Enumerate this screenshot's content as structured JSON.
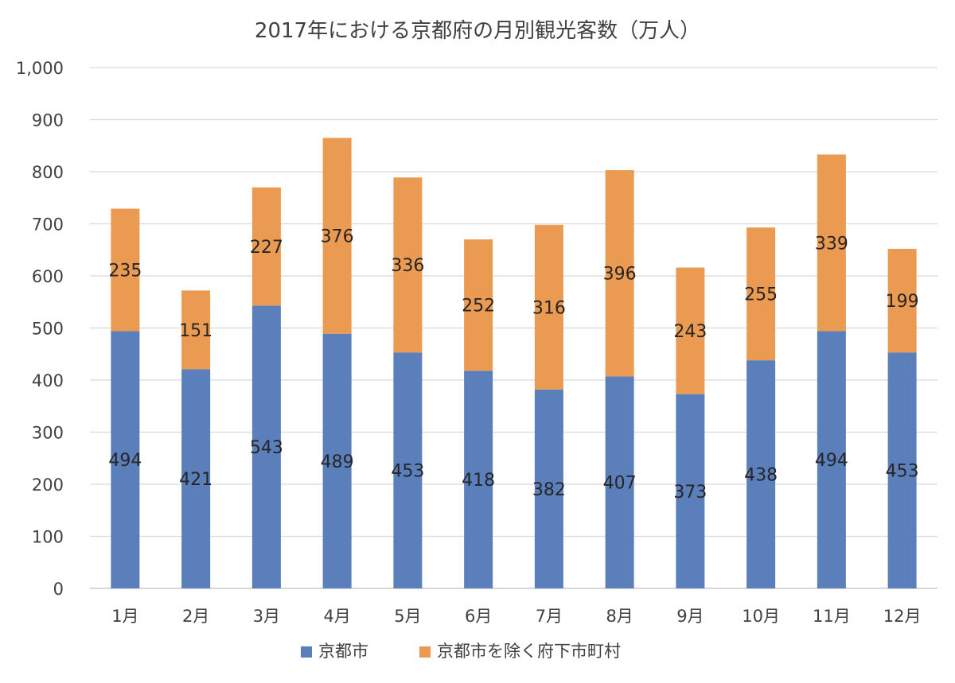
{
  "chart_data": {
    "type": "bar",
    "stacked": true,
    "title": "2017年における京都府の月別観光客数（万人）",
    "xlabel": "",
    "ylabel": "",
    "categories": [
      "1月",
      "2月",
      "3月",
      "4月",
      "5月",
      "6月",
      "7月",
      "8月",
      "9月",
      "10月",
      "11月",
      "12月"
    ],
    "ylim": [
      0,
      1000
    ],
    "yticks": [
      0,
      100,
      200,
      300,
      400,
      500,
      600,
      700,
      800,
      900,
      1000
    ],
    "ytick_labels": [
      "0",
      "100",
      "200",
      "300",
      "400",
      "500",
      "600",
      "700",
      "800",
      "900",
      "1,000"
    ],
    "grid": true,
    "legend_position": "bottom",
    "series": [
      {
        "name": "京都市",
        "color": "#5B7FBA",
        "values": [
          494,
          421,
          543,
          489,
          453,
          418,
          382,
          407,
          373,
          438,
          494,
          453
        ]
      },
      {
        "name": "京都市を除く府下市町村",
        "color": "#EB9A52",
        "values": [
          235,
          151,
          227,
          376,
          336,
          252,
          316,
          396,
          243,
          255,
          339,
          199
        ]
      }
    ]
  }
}
